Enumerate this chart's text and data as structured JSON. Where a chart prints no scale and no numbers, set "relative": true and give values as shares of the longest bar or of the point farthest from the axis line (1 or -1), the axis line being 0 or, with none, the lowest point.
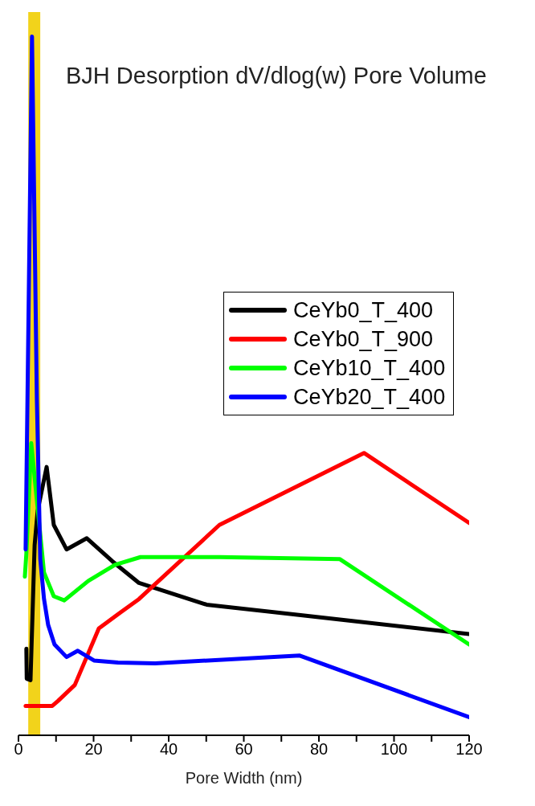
{
  "chart_data": {
    "type": "line",
    "title": "BJH Desorption dV/dlog(w) Pore Volume",
    "xlabel": "Pore Width (nm)",
    "relative": true,
    "legend": "right",
    "grid": false,
    "xlim": [
      0,
      120
    ],
    "xticks": [
      0,
      {
        "value": 10,
        "label": null
      },
      20,
      {
        "value": 30,
        "label": null
      },
      40,
      {
        "value": 50,
        "label": null
      },
      60,
      {
        "value": 70,
        "label": null
      },
      80,
      {
        "value": 90,
        "label": null
      },
      100,
      {
        "value": 110,
        "label": null
      },
      120
    ],
    "bands": [
      {
        "axis": "x",
        "from": 2.6,
        "to": 5.8,
        "color": "#f2d31b"
      }
    ],
    "series": [
      {
        "name": "CeYb0_T_400",
        "color": "#000000",
        "x": [
          2.1,
          2.2,
          3.2,
          4.3,
          5.1,
          7.5,
          9.4,
          12.8,
          18.2,
          25.0,
          32.1,
          50.1,
          120
        ],
        "values": [
          0.124,
          0.081,
          0.079,
          0.272,
          0.321,
          0.384,
          0.301,
          0.266,
          0.282,
          0.249,
          0.218,
          0.187,
          0.145
        ]
      },
      {
        "name": "CeYb0_T_900",
        "color": "#ff0000",
        "x": [
          1.9,
          9.0,
          10.5,
          15.0,
          21.4,
          27.2,
          32.1,
          53.5,
          92.0,
          120
        ],
        "values": [
          0.042,
          0.042,
          0.049,
          0.072,
          0.153,
          0.176,
          0.195,
          0.301,
          0.404,
          0.304
        ]
      },
      {
        "name": "CeYb10_T_400",
        "color": "#00ff00",
        "x": [
          1.7,
          2.1,
          3.4,
          6.8,
          9.4,
          12.2,
          18.6,
          25.7,
          32.5,
          53.5,
          85.6,
          120
        ],
        "values": [
          0.227,
          0.26,
          0.418,
          0.233,
          0.199,
          0.193,
          0.221,
          0.244,
          0.255,
          0.255,
          0.252,
          0.13
        ]
      },
      {
        "name": "CeYb20_T_400",
        "color": "#0000ff",
        "x": [
          1.9,
          3.6,
          4.9,
          5.8,
          6.8,
          7.9,
          9.6,
          12.8,
          15.8,
          20.1,
          26.5,
          36.4,
          74.9,
          120
        ],
        "values": [
          0.266,
          1,
          0.481,
          0.252,
          0.195,
          0.158,
          0.13,
          0.112,
          0.121,
          0.107,
          0.104,
          0.103,
          0.114,
          0.026
        ]
      }
    ]
  }
}
